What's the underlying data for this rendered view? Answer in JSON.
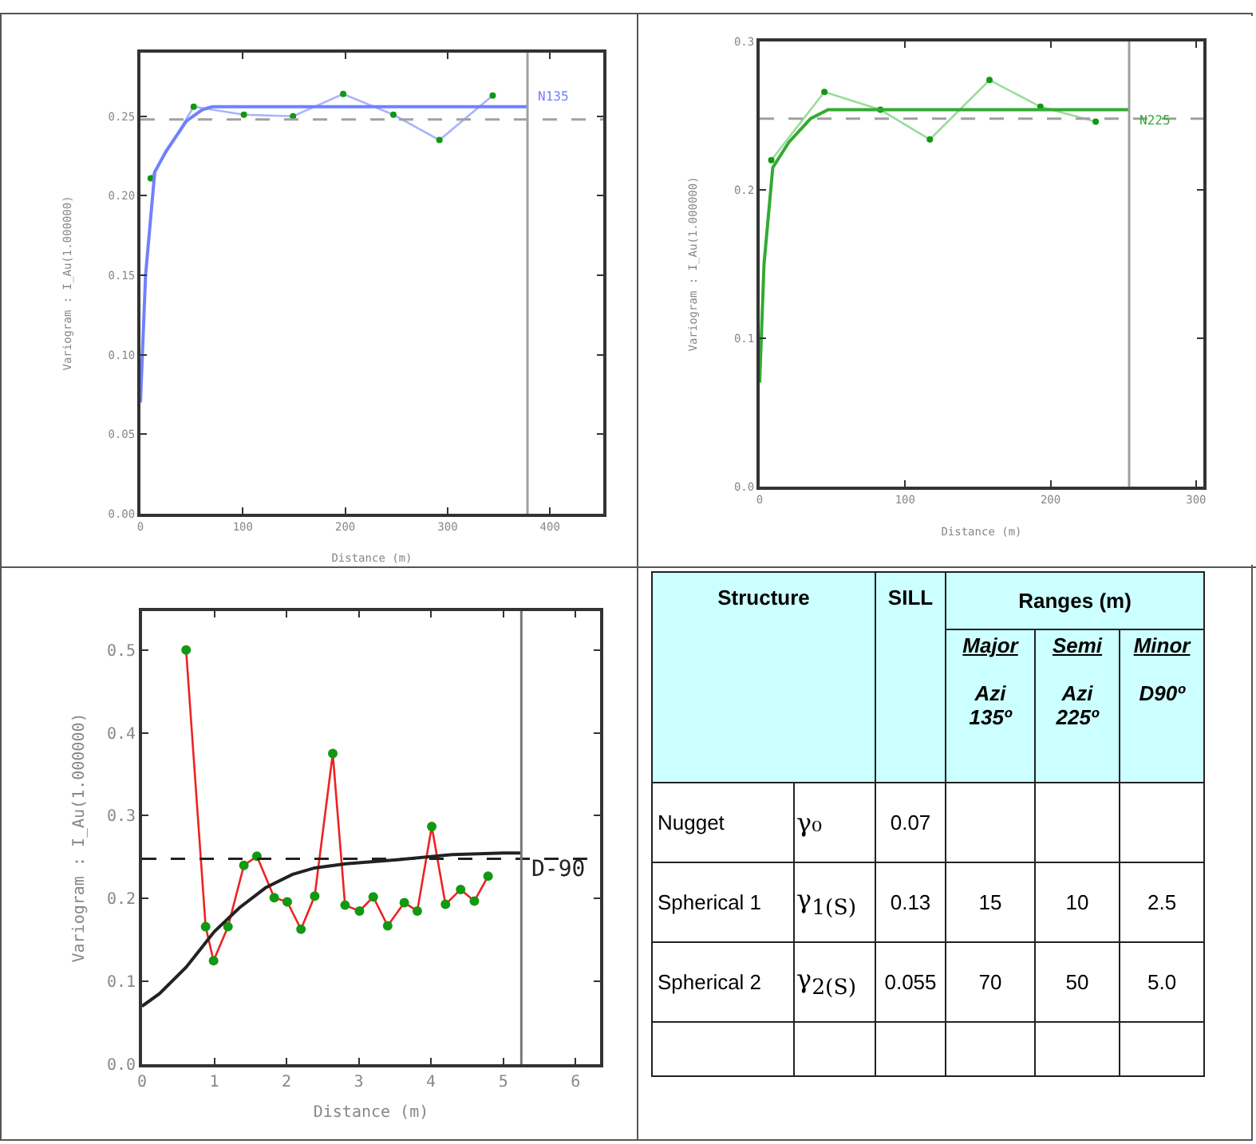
{
  "chart_data": [
    {
      "type": "line",
      "xlabel": "Distance (m)",
      "ylabel": "Variogram : I_Au(1.000000)",
      "xlim": [
        0,
        452
      ],
      "xticks": [
        0,
        100,
        200,
        300,
        400
      ],
      "ylim": [
        0,
        0.29
      ],
      "yticks": [
        {
          "value": 0,
          "label": "0.00"
        },
        0.05,
        {
          "value": 0.1,
          "label": "0.10"
        },
        0.15,
        {
          "value": 0.2,
          "label": "0.20"
        },
        0.25
      ],
      "grid": false,
      "legend": false,
      "series": [
        {
          "color": "#aab2ff",
          "marker": "circle",
          "colors": [
            "#119911",
            "#119911",
            "#119911",
            "#119911",
            "#119911",
            "#119911",
            "#119911",
            "#119911"
          ],
          "x": [
            10,
            52,
            101,
            149,
            198,
            247,
            292,
            344
          ],
          "values": [
            0.211,
            0.256,
            0.251,
            0.25,
            0.264,
            0.251,
            0.235,
            0.263
          ]
        },
        {
          "name": "N135",
          "color": "#7080ff",
          "marker": "none",
          "x": [
            0,
            5,
            14,
            25,
            45,
            60,
            70,
            378
          ],
          "values": [
            0.07,
            0.15,
            0.215,
            0.228,
            0.247,
            0.254,
            0.256,
            0.256
          ]
        }
      ],
      "ref_lines": [
        {
          "axis": "y",
          "value": 0.248,
          "color": "#a0a0a0",
          "line_style": "dashed"
        },
        {
          "axis": "x",
          "value": 378,
          "color": "#a0a0a0",
          "line_style": "solid"
        }
      ]
    },
    {
      "type": "line",
      "xlabel": "Distance (m)",
      "ylabel": "Variogram : I_Au(1.000000)",
      "xlim": [
        0,
        305
      ],
      "xticks": [
        0,
        100,
        200,
        300
      ],
      "ylim": [
        0,
        0.3
      ],
      "yticks": [
        {
          "value": 0,
          "label": "0.0"
        },
        0.1,
        0.2,
        0.3
      ],
      "grid": false,
      "legend": false,
      "series": [
        {
          "color": "#99dd99",
          "marker": "circle",
          "colors": [
            "#119911",
            "#119911",
            "#119911",
            "#119911",
            "#119911",
            "#119911",
            "#119911"
          ],
          "x": [
            8,
            44.5,
            83,
            117,
            158,
            193,
            231
          ],
          "values": [
            0.22,
            0.266,
            0.254,
            0.234,
            0.274,
            0.256,
            0.246
          ]
        },
        {
          "name": "N225",
          "color": "#33aa33",
          "marker": "none",
          "x": [
            0,
            3,
            9,
            20,
            35,
            47,
            254
          ],
          "values": [
            0.07,
            0.15,
            0.215,
            0.232,
            0.248,
            0.254,
            0.254
          ]
        }
      ],
      "ref_lines": [
        {
          "axis": "y",
          "value": 0.248,
          "color": "#a0a0a0",
          "line_style": "dashed"
        },
        {
          "axis": "x",
          "value": 254,
          "color": "#a0a0a0",
          "line_style": "solid"
        }
      ]
    },
    {
      "type": "line",
      "xlabel": "Distance (m)",
      "ylabel": "Variogram : I_Au(1.000000)",
      "xlim": [
        0,
        6.34
      ],
      "xticks": [
        0,
        1,
        2,
        3,
        4,
        5,
        6
      ],
      "ylim": [
        0,
        0.547
      ],
      "yticks": [
        {
          "value": 0,
          "label": "0.0"
        },
        0.1,
        0.2,
        0.3,
        0.4,
        0.5
      ],
      "grid": false,
      "legend": false,
      "series": [
        {
          "color": "#ee2222",
          "marker": "circle",
          "colors": [
            "#119911",
            "#119911",
            "#119911",
            "#119911",
            "#119911",
            "#119911",
            "#119911",
            "#119911",
            "#119911",
            "#119911",
            "#119911",
            "#119911",
            "#119911",
            "#119911",
            "#119911",
            "#119911",
            "#119911",
            "#119911",
            "#119911",
            "#119911",
            "#119911",
            "#119911"
          ],
          "x": [
            0.61,
            0.88,
            0.99,
            1.19,
            1.41,
            1.59,
            1.83,
            2.01,
            2.2,
            2.39,
            2.64,
            2.81,
            3.01,
            3.2,
            3.4,
            3.63,
            3.81,
            4.01,
            4.2,
            4.41,
            4.6,
            4.79
          ],
          "values": [
            0.5,
            0.166,
            0.125,
            0.166,
            0.24,
            0.251,
            0.201,
            0.196,
            0.163,
            0.203,
            0.375,
            0.192,
            0.185,
            0.202,
            0.167,
            0.195,
            0.185,
            0.287,
            0.193,
            0.211,
            0.197,
            0.227
          ]
        },
        {
          "name": "D-90",
          "color": "#222222",
          "marker": "none",
          "x": [
            0,
            0.24,
            0.61,
            1.0,
            1.35,
            1.71,
            2.08,
            2.39,
            2.82,
            3.56,
            4.29,
            5.0,
            5.25
          ],
          "values": [
            0.07,
            0.085,
            0.117,
            0.16,
            0.189,
            0.213,
            0.229,
            0.237,
            0.242,
            0.247,
            0.253,
            0.255,
            0.255
          ]
        }
      ],
      "ref_lines": [
        {
          "axis": "y",
          "value": 0.248,
          "color": "#222222",
          "line_style": "dashed"
        },
        {
          "axis": "x",
          "value": 5.25,
          "color": "#777777",
          "line_style": "solid"
        }
      ]
    },
    {
      "type": "other",
      "annotations": [
        "Structure",
        "SILL",
        "Ranges (m)",
        "Major",
        "Azi 135º",
        "Semi",
        "Azi 225º",
        "Minor",
        "D90º",
        "Nugget",
        "γ₀",
        "0.07",
        "Spherical 1",
        "γ$_{1(S)}$",
        "0.13",
        "15",
        "10",
        "2.5",
        "Spherical 2",
        "γ$_{2(S)}$",
        "0.055",
        "70",
        "50",
        "5.0"
      ]
    }
  ]
}
